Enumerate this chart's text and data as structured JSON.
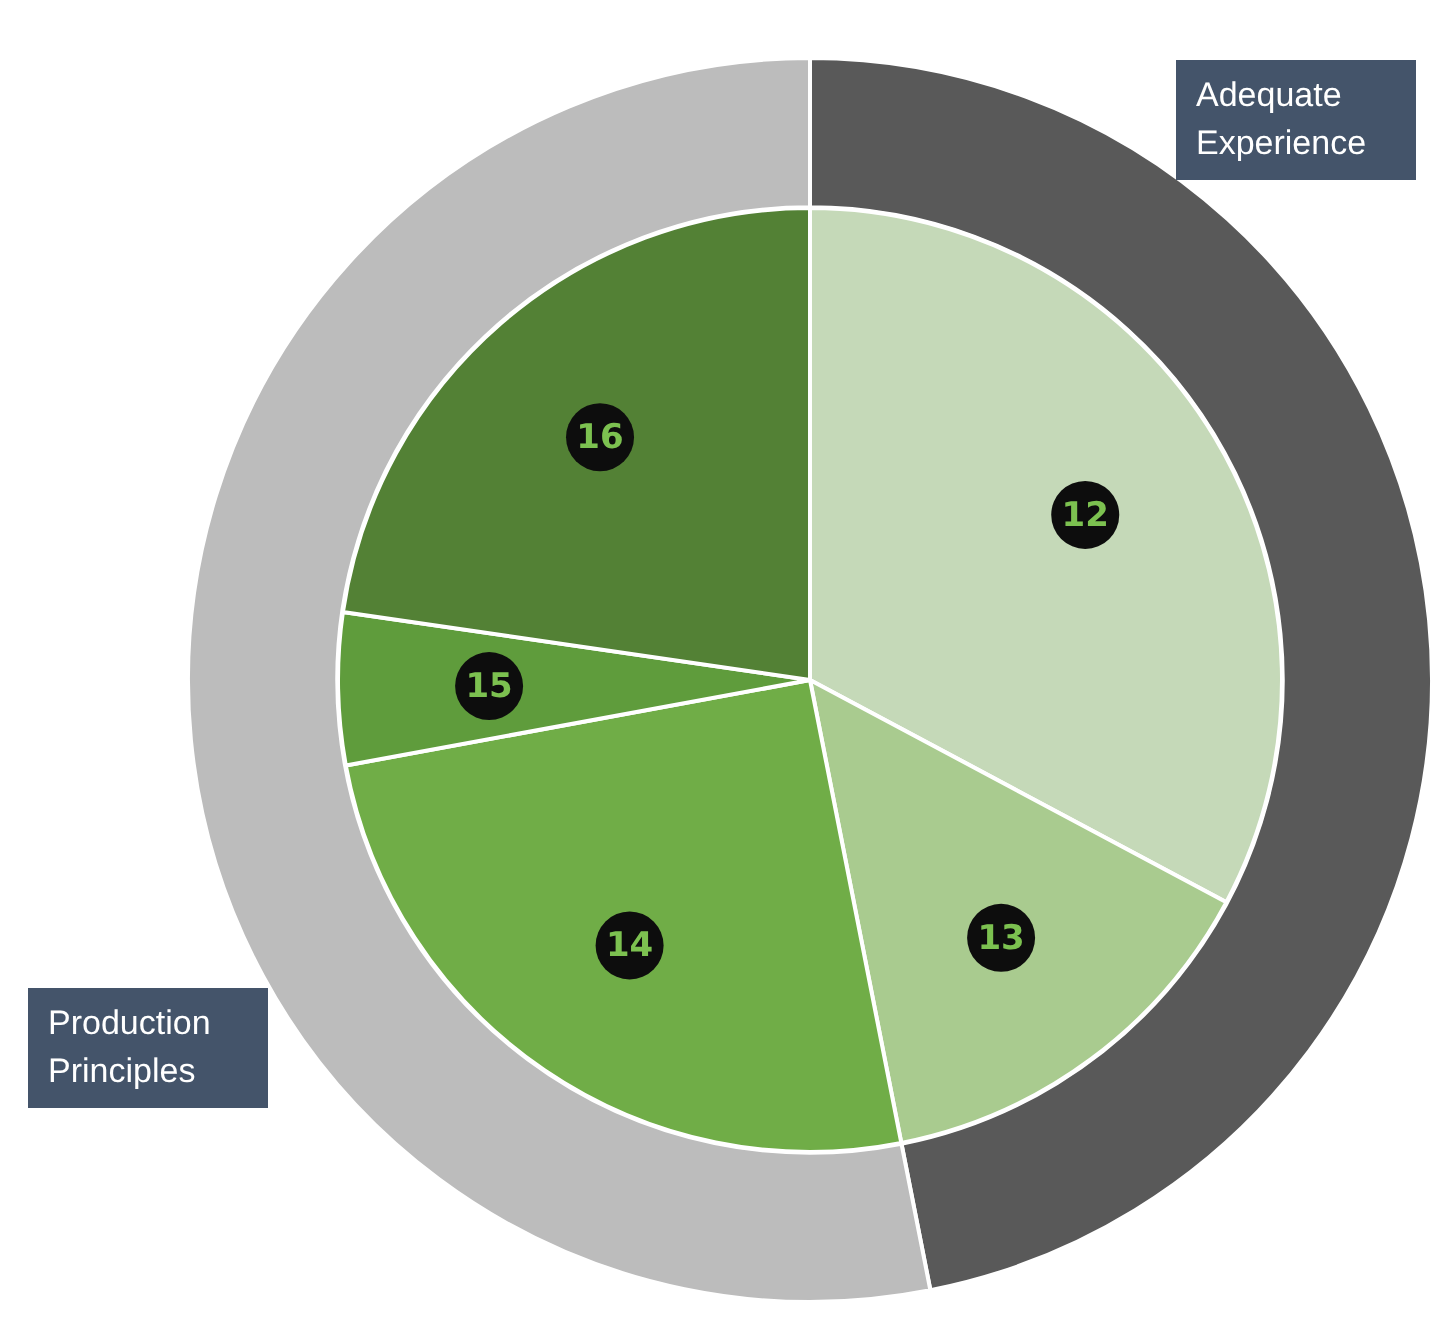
{
  "chart_data": [
    {
      "type": "donut",
      "categories": [
        "Adequate Experience",
        "Production Principles"
      ],
      "values": [
        46.9,
        53.1
      ],
      "colors": [
        "#595959",
        "#bcbcbc"
      ]
    },
    {
      "type": "pie",
      "categories": [
        "12",
        "13",
        "14",
        "15",
        "16"
      ],
      "values": [
        32.8,
        14.1,
        25.2,
        5.2,
        22.7
      ],
      "colors": [
        "#c5d9b8",
        "#a9cb8f",
        "#70ad47",
        "#5f9c3c",
        "#538135"
      ]
    }
  ]
}
